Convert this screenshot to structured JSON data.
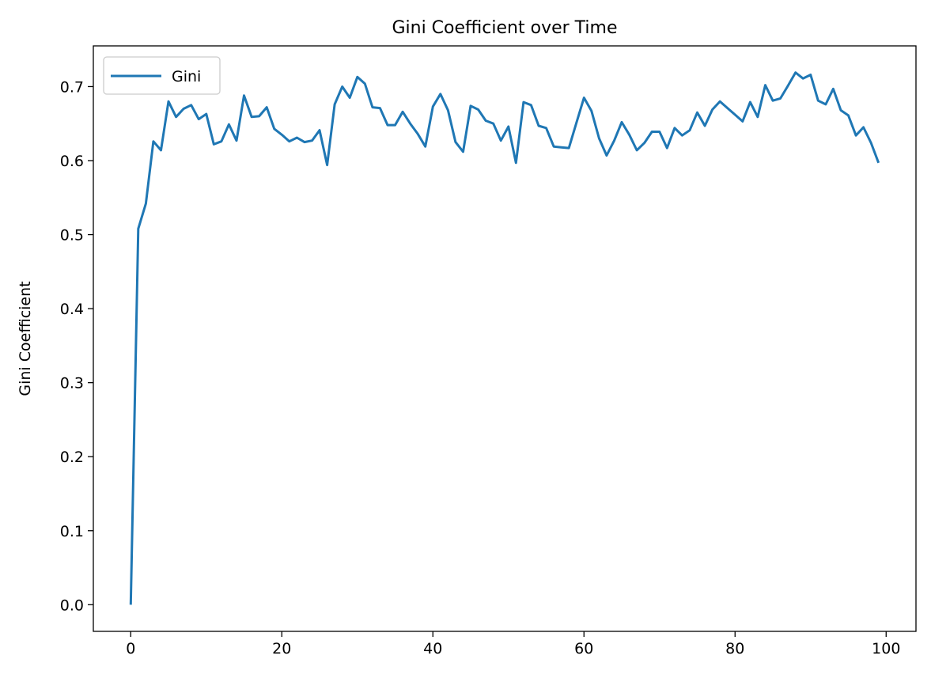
{
  "chart_data": {
    "type": "line",
    "title": "Gini Coefficient over Time",
    "xlabel": "",
    "ylabel": "Gini Coefficient",
    "xlim": [
      -4.95,
      103.95
    ],
    "ylim": [
      -0.036,
      0.755
    ],
    "xticks": [
      0,
      20,
      40,
      60,
      80,
      100
    ],
    "xtick_labels": [
      "0",
      "20",
      "40",
      "60",
      "80",
      "100"
    ],
    "yticks": [
      0.0,
      0.1,
      0.2,
      0.3,
      0.4,
      0.5,
      0.6,
      0.7
    ],
    "ytick_labels": [
      "0.0",
      "0.1",
      "0.2",
      "0.3",
      "0.4",
      "0.5",
      "0.6",
      "0.7"
    ],
    "grid": false,
    "legend": "upper-left",
    "series": [
      {
        "name": "Gini",
        "color": "#1f77b4",
        "values": [
          0.0,
          0.508,
          0.542,
          0.626,
          0.614,
          0.68,
          0.659,
          0.67,
          0.675,
          0.656,
          0.663,
          0.622,
          0.626,
          0.649,
          0.627,
          0.688,
          0.659,
          0.66,
          0.672,
          0.643,
          0.635,
          0.626,
          0.631,
          0.625,
          0.627,
          0.641,
          0.594,
          0.676,
          0.7,
          0.685,
          0.713,
          0.704,
          0.672,
          0.671,
          0.648,
          0.648,
          0.666,
          0.65,
          0.636,
          0.619,
          0.673,
          0.69,
          0.668,
          0.625,
          0.612,
          0.674,
          0.669,
          0.654,
          0.65,
          0.627,
          0.646,
          0.597,
          0.679,
          0.675,
          0.647,
          0.644,
          0.619,
          0.618,
          0.617,
          0.651,
          0.685,
          0.667,
          0.63,
          0.607,
          0.627,
          0.652,
          0.635,
          0.614,
          0.624,
          0.639,
          0.639,
          0.617,
          0.644,
          0.634,
          0.641,
          0.665,
          0.647,
          0.669,
          0.68,
          0.671,
          0.662,
          0.653,
          0.679,
          0.659,
          0.702,
          0.681,
          0.684,
          0.701,
          0.719,
          0.711,
          0.716,
          0.681,
          0.676,
          0.697,
          0.668,
          0.661,
          0.634,
          0.645,
          0.624,
          0.597
        ]
      }
    ]
  }
}
